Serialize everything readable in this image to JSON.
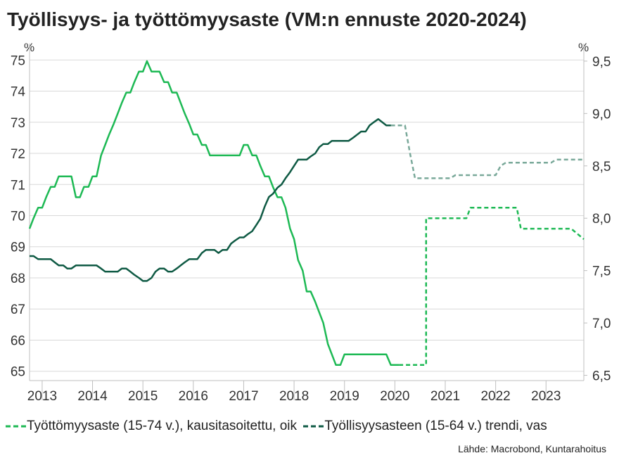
{
  "chart_data": {
    "type": "line",
    "title": "Työllisyys- ja työttömyysaste (VM:n ennuste 2020-2024)",
    "left_unit": "%",
    "right_unit": "%",
    "source": "Lähde: Macrobond, Kuntarahoitus",
    "x_range": [
      2012.75,
      2023.75
    ],
    "x_ticks": [
      "2013",
      "2014",
      "2015",
      "2016",
      "2017",
      "2018",
      "2019",
      "2020",
      "2021",
      "2022",
      "2023"
    ],
    "y_left": {
      "range": [
        64.7,
        75.3
      ],
      "ticks": [
        "65",
        "66",
        "67",
        "68",
        "69",
        "70",
        "71",
        "72",
        "73",
        "74",
        "75"
      ]
    },
    "y_right": {
      "range": [
        6.45,
        9.6
      ],
      "ticks": [
        "6,5",
        "7,0",
        "7,5",
        "8,0",
        "8,5",
        "9,0",
        "9,5"
      ]
    },
    "colors": {
      "unemployment": "#1db954",
      "employment": "#0f5a44",
      "employment_forecast": "#7aa99a",
      "grid": "#d9d9d9",
      "axis": "#bfbfbf"
    },
    "series": [
      {
        "name": "Työttömyysaste (15-74 v.), kausitasoitettu, oik",
        "axis": "right",
        "style": "solid",
        "x": [
          2012.75,
          2012.83,
          2012.92,
          2013.0,
          2013.08,
          2013.17,
          2013.25,
          2013.33,
          2013.42,
          2013.5,
          2013.58,
          2013.67,
          2013.75,
          2013.83,
          2013.92,
          2014.0,
          2014.08,
          2014.17,
          2014.25,
          2014.33,
          2014.42,
          2014.5,
          2014.58,
          2014.67,
          2014.75,
          2014.83,
          2014.92,
          2015.0,
          2015.08,
          2015.17,
          2015.25,
          2015.33,
          2015.42,
          2015.5,
          2015.58,
          2015.67,
          2015.75,
          2015.83,
          2015.92,
          2016.0,
          2016.08,
          2016.17,
          2016.25,
          2016.33,
          2016.42,
          2016.5,
          2016.58,
          2016.67,
          2016.75,
          2016.83,
          2016.92,
          2017.0,
          2017.08,
          2017.17,
          2017.25,
          2017.33,
          2017.42,
          2017.5,
          2017.58,
          2017.67,
          2017.75,
          2017.83,
          2017.92,
          2018.0,
          2018.08,
          2018.17,
          2018.25,
          2018.33,
          2018.42,
          2018.5,
          2018.58,
          2018.67,
          2018.75,
          2018.83,
          2018.92,
          2019.0,
          2019.08,
          2019.17,
          2019.25,
          2019.33,
          2019.42,
          2019.5,
          2019.58,
          2019.67,
          2019.75,
          2019.83,
          2019.92,
          2020.0,
          2020.08
        ],
        "values": [
          7.9,
          8.0,
          8.1,
          8.1,
          8.2,
          8.3,
          8.3,
          8.4,
          8.4,
          8.4,
          8.4,
          8.2,
          8.2,
          8.3,
          8.3,
          8.4,
          8.4,
          8.6,
          8.7,
          8.8,
          8.9,
          9.0,
          9.1,
          9.2,
          9.2,
          9.3,
          9.4,
          9.4,
          9.5,
          9.4,
          9.4,
          9.4,
          9.3,
          9.3,
          9.2,
          9.2,
          9.1,
          9.0,
          8.9,
          8.8,
          8.8,
          8.7,
          8.7,
          8.6,
          8.6,
          8.6,
          8.6,
          8.6,
          8.6,
          8.6,
          8.6,
          8.7,
          8.7,
          8.6,
          8.6,
          8.5,
          8.4,
          8.4,
          8.3,
          8.2,
          8.2,
          8.1,
          7.9,
          7.8,
          7.6,
          7.5,
          7.3,
          7.3,
          7.2,
          7.1,
          7.0,
          6.8,
          6.7,
          6.6,
          6.6,
          6.7,
          6.7,
          6.7,
          6.7,
          6.7,
          6.7,
          6.7,
          6.7,
          6.7,
          6.7,
          6.7,
          6.6,
          6.6,
          6.6
        ]
      },
      {
        "name": "Työttömyysaste (15-74 v.), kausitasoitettu, oik",
        "axis": "right",
        "style": "dashed",
        "legend": false,
        "x": [
          2020.08,
          2020.5,
          2020.62,
          2020.62,
          2021.0,
          2021.42,
          2021.42,
          2021.5,
          2022.0,
          2022.42,
          2022.46,
          2022.5,
          2023.0,
          2023.42,
          2023.5,
          2023.75
        ],
        "values": [
          6.6,
          6.6,
          6.6,
          8.0,
          8.0,
          8.0,
          8.0,
          8.1,
          8.1,
          8.1,
          8.0,
          7.9,
          7.9,
          7.9,
          7.9,
          7.8
        ]
      },
      {
        "name": "Työllisyysasteen (15-64 v.) trendi, vas",
        "axis": "left",
        "style": "solid",
        "x": [
          2012.75,
          2012.83,
          2012.92,
          2013.0,
          2013.08,
          2013.17,
          2013.25,
          2013.33,
          2013.42,
          2013.5,
          2013.58,
          2013.67,
          2013.75,
          2013.83,
          2013.92,
          2014.0,
          2014.08,
          2014.17,
          2014.25,
          2014.33,
          2014.42,
          2014.5,
          2014.58,
          2014.67,
          2014.75,
          2014.83,
          2014.92,
          2015.0,
          2015.08,
          2015.17,
          2015.25,
          2015.33,
          2015.42,
          2015.5,
          2015.58,
          2015.67,
          2015.75,
          2015.83,
          2015.92,
          2016.0,
          2016.08,
          2016.17,
          2016.25,
          2016.33,
          2016.42,
          2016.5,
          2016.58,
          2016.67,
          2016.75,
          2016.83,
          2016.92,
          2017.0,
          2017.08,
          2017.17,
          2017.25,
          2017.33,
          2017.42,
          2017.5,
          2017.58,
          2017.67,
          2017.75,
          2017.83,
          2017.92,
          2018.0,
          2018.08,
          2018.17,
          2018.25,
          2018.33,
          2018.42,
          2018.5,
          2018.58,
          2018.67,
          2018.75,
          2018.83,
          2018.92,
          2019.0,
          2019.08,
          2019.17,
          2019.25
        ],
        "values": [
          68.7,
          68.7,
          68.6,
          68.6,
          68.6,
          68.6,
          68.5,
          68.4,
          68.4,
          68.3,
          68.3,
          68.4,
          68.4,
          68.4,
          68.4,
          68.4,
          68.4,
          68.3,
          68.2,
          68.2,
          68.2,
          68.2,
          68.3,
          68.3,
          68.2,
          68.1,
          68.0,
          67.9,
          67.9,
          68.0,
          68.2,
          68.3,
          68.3,
          68.2,
          68.2,
          68.3,
          68.4,
          68.5,
          68.6,
          68.6,
          68.6,
          68.8,
          68.9,
          68.9,
          68.9,
          68.8,
          68.9,
          68.9,
          69.1,
          69.2,
          69.3,
          69.3,
          69.4,
          69.5,
          69.7,
          69.9,
          70.3,
          70.6,
          70.7,
          70.9,
          71.0,
          71.2,
          71.4,
          71.6,
          71.8,
          71.8,
          71.8,
          71.9,
          72.0,
          72.2,
          72.3,
          72.3,
          72.4,
          72.4,
          72.4,
          72.4,
          72.4,
          72.5,
          72.6
        ]
      },
      {
        "name": "Työllisyysasteen (15-64 v.) trendi, vas",
        "axis": "left",
        "style": "solid",
        "legend": false,
        "x": [
          2019.25,
          2019.33,
          2019.42,
          2019.5,
          2019.58,
          2019.67,
          2019.75,
          2019.83,
          2019.92,
          2020.0
        ],
        "values": [
          72.6,
          72.7,
          72.7,
          72.9,
          73.0,
          73.1,
          73.0,
          72.9,
          72.9,
          72.9
        ]
      },
      {
        "name": "Työllisyysasteen (15-64 v.) trendi, vas",
        "axis": "left",
        "style": "dashed",
        "legend": false,
        "x": [
          2019.92,
          2020.2,
          2020.3,
          2020.4,
          2021.0,
          2021.1,
          2021.2,
          2021.5,
          2022.0,
          2022.1,
          2022.2,
          2022.5,
          2023.0,
          2023.1,
          2023.2,
          2023.75
        ],
        "values": [
          72.9,
          72.9,
          72.0,
          71.2,
          71.2,
          71.2,
          71.3,
          71.3,
          71.3,
          71.6,
          71.7,
          71.7,
          71.7,
          71.7,
          71.8,
          71.8
        ]
      }
    ],
    "legend": [
      {
        "label": "Työttömyysaste (15-74 v.), kausitasoitettu, oik",
        "color": "#1db954"
      },
      {
        "label": "Työllisyysasteen (15-64 v.) trendi, vas",
        "color": "#0f5a44"
      }
    ]
  }
}
